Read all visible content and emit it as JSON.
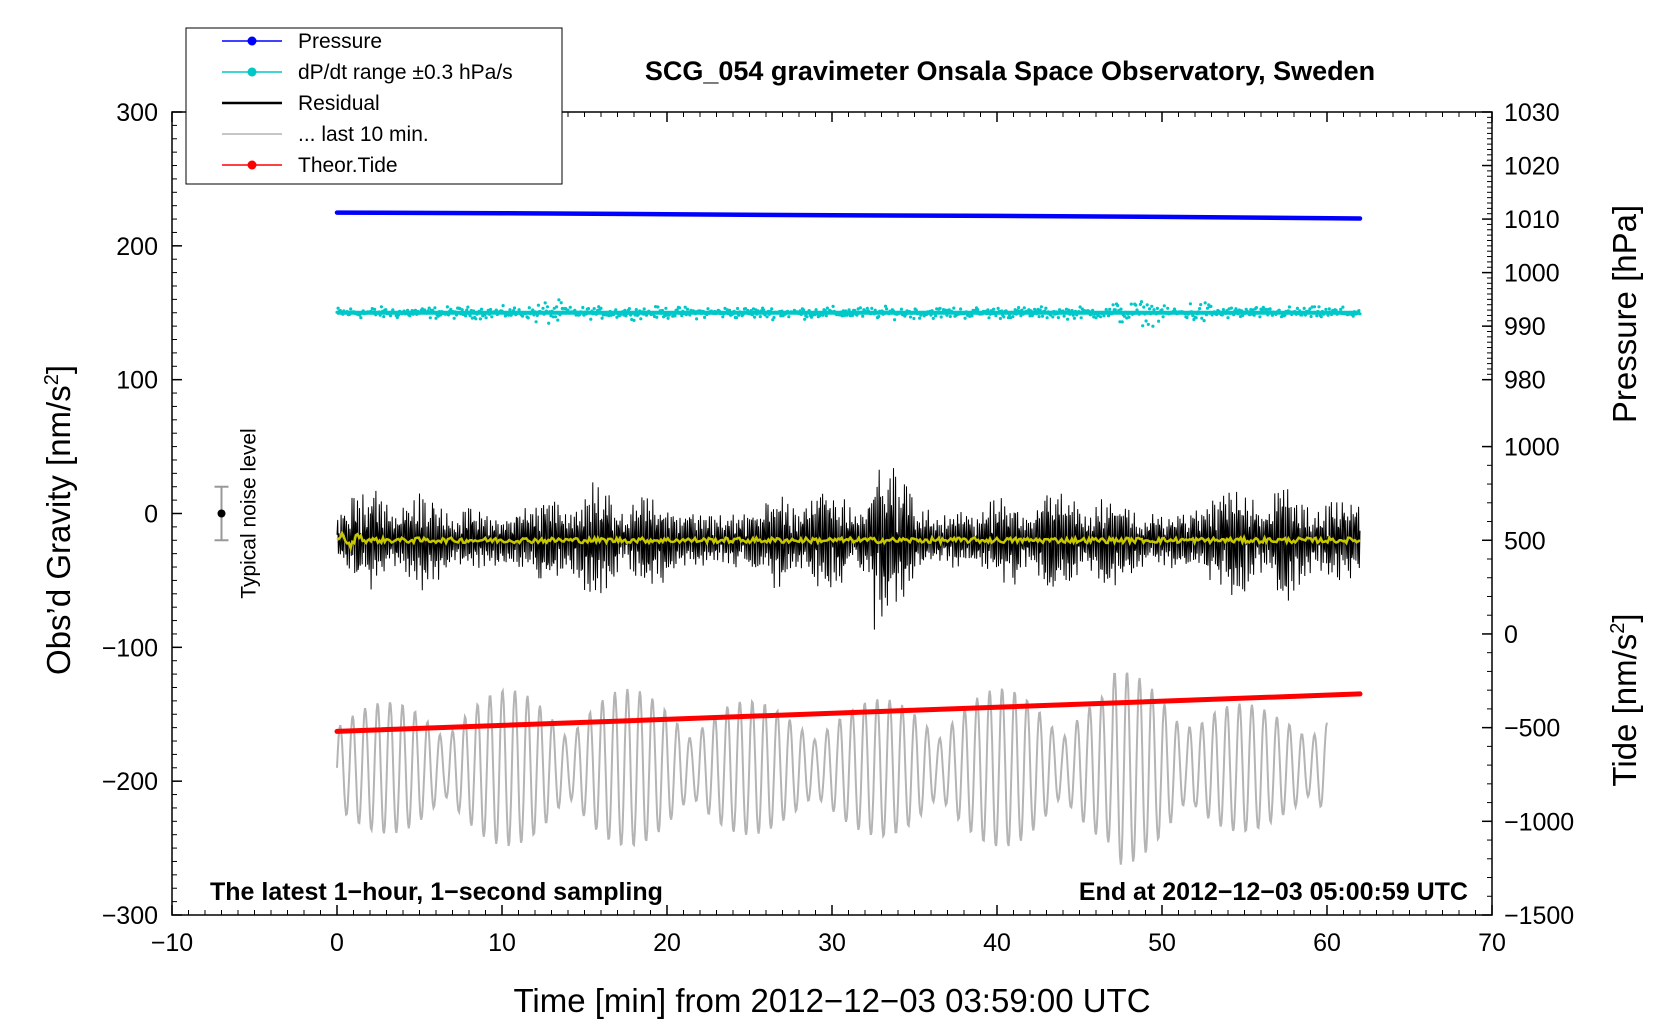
{
  "chart_data": {
    "type": "line",
    "title": "SCG_054 gravimeter Onsala Space Observatory, Sweden",
    "xlabel": "Time [min] from 2012−12−03 03:59:00 UTC",
    "ylabel_left": "Obs’d Gravity [nm/s",
    "ylabel_left_sup": "2",
    "ylabel_left_close": "]",
    "ylabel_right_top": "Pressure [hPa]",
    "ylabel_right_bottom": "Tide [nm/s",
    "ylabel_right_bottom_sup": "2",
    "ylabel_right_bottom_close": "]",
    "xlim": [
      -10,
      70
    ],
    "ylim": [
      -300,
      300
    ],
    "pressure_axis_range": [
      980,
      1030
    ],
    "tide_axis_range": [
      -1500,
      1000
    ],
    "x_ticks": [
      {
        "v": -10,
        "label": "−10"
      },
      {
        "v": 0,
        "label": "0"
      },
      {
        "v": 10,
        "label": "10"
      },
      {
        "v": 20,
        "label": "20"
      },
      {
        "v": 30,
        "label": "30"
      },
      {
        "v": 40,
        "label": "40"
      },
      {
        "v": 50,
        "label": "50"
      },
      {
        "v": 60,
        "label": "60"
      },
      {
        "v": 70,
        "label": "70"
      }
    ],
    "y_ticks_left": [
      {
        "v": 300,
        "label": "300"
      },
      {
        "v": 200,
        "label": "200"
      },
      {
        "v": 100,
        "label": "100"
      },
      {
        "v": 0,
        "label": "0"
      },
      {
        "v": -100,
        "label": "−100"
      },
      {
        "v": -200,
        "label": "−200"
      },
      {
        "v": -300,
        "label": "−300"
      }
    ],
    "y_ticks_pressure": [
      {
        "v": 1030,
        "label": "1030"
      },
      {
        "v": 1020,
        "label": "1020"
      },
      {
        "v": 1010,
        "label": "1010"
      },
      {
        "v": 1000,
        "label": "1000"
      },
      {
        "v": 990,
        "label": "990"
      },
      {
        "v": 980,
        "label": "980"
      }
    ],
    "y_ticks_tide": [
      {
        "v": 1000,
        "label": "1000"
      },
      {
        "v": 500,
        "label": "500"
      },
      {
        "v": 0,
        "label": "0"
      },
      {
        "v": -500,
        "label": "−500"
      },
      {
        "v": -1000,
        "label": "−1000"
      },
      {
        "v": -1500,
        "label": "−1500"
      }
    ],
    "legend": {
      "position": "top-left",
      "entries": [
        {
          "label": "Pressure",
          "color": "#0000ff",
          "marker": true
        },
        {
          "label": "dP/dt range ±0.3 hPa/s",
          "color": "#00c8c8",
          "marker": true
        },
        {
          "label": "Residual",
          "color": "#000000",
          "marker": false
        },
        {
          "label": "... last 10 min.",
          "color": "#b4b4b4",
          "marker": false
        },
        {
          "label": "Theor.Tide",
          "color": "#ff0000",
          "marker": true
        }
      ]
    },
    "series": [
      {
        "name": "Pressure",
        "axis": "pressure",
        "color": "#0000ff",
        "x": [
          0,
          10,
          20,
          30,
          40,
          50,
          62
        ],
        "y": [
          1011.2,
          1011.1,
          1010.9,
          1010.7,
          1010.6,
          1010.4,
          1010.1
        ]
      },
      {
        "name": "dP/dt",
        "axis": "left",
        "color": "#00c8c8",
        "center": 150,
        "spread": 4,
        "x_range": [
          0,
          62
        ]
      },
      {
        "name": "Residual",
        "axis": "left",
        "color": "#000000",
        "center": -20,
        "amplitude_typical": 40,
        "x_range": [
          0,
          62
        ]
      },
      {
        "name": "Residual smoothed",
        "axis": "left",
        "color": "#c8c800",
        "center": -20,
        "x_range": [
          0,
          62
        ]
      },
      {
        "name": "... last 10 min.",
        "axis": "left",
        "color": "#b4b4b4",
        "center": -190,
        "amplitude_typical": 40,
        "x_range": [
          0,
          60
        ]
      },
      {
        "name": "Theor.Tide",
        "axis": "tide",
        "color": "#ff0000",
        "x": [
          0,
          62
        ],
        "y": [
          -520,
          -320
        ]
      }
    ],
    "noise_level": {
      "label": "Typical noise level",
      "x": -7,
      "y": 0,
      "half_range": 20
    },
    "annotations": {
      "bottom_left": "The latest 1−hour, 1−second sampling",
      "bottom_right": "End at 2012−12−03 05:00:59 UTC"
    }
  }
}
